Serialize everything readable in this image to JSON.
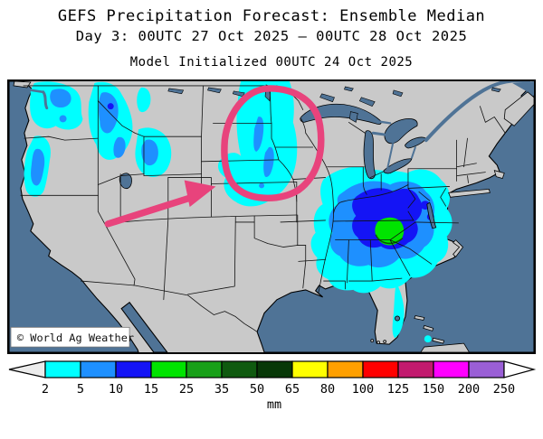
{
  "header": {
    "title": "GEFS Precipitation Forecast: Ensemble Median",
    "date_line": "Day 3: 00UTC 27 Oct 2025 — 00UTC 28 Oct 2025",
    "init_line": "Model Initialized 00UTC 24 Oct 2025"
  },
  "map": {
    "watermark": "© World Ag Weather",
    "ocean_color": "#4F7396",
    "land_color": "#C9C9C9",
    "annotation_color": "#E8437C",
    "precip_regions": [
      {
        "area": "Pacific Northwest (WA/OR coast & Cascades)",
        "range_mm": "2-10"
      },
      {
        "area": "Idaho panhandle / western Montana",
        "range_mm": "2-15"
      },
      {
        "area": "Yellowstone / Wyoming Rockies",
        "range_mm": "2-10"
      },
      {
        "area": "Dakotas into Nebraska-Minnesota (circled)",
        "range_mm": "2-10"
      },
      {
        "area": "Southeast: TN/GA/Carolinas core",
        "range_mm": "2-25"
      },
      {
        "area": "Florida east coast & Bahamas",
        "range_mm": "2-5"
      }
    ]
  },
  "colorbar": {
    "units": "mm",
    "tick_labels": [
      "2",
      "5",
      "10",
      "15",
      "25",
      "35",
      "50",
      "65",
      "80",
      "100",
      "125",
      "150",
      "200",
      "250"
    ],
    "colors": [
      "#00FFFF",
      "#1E90FF",
      "#1414F5",
      "#00E400",
      "#18A018",
      "#0F5A0F",
      "#073807",
      "#FFFF00",
      "#FFA000",
      "#FF0000",
      "#C21A6E",
      "#FF00FF",
      "#9A5FD6"
    ],
    "left_arrow_fill": "#ECECEC",
    "right_arrow_fill": "#FFFFFF"
  }
}
